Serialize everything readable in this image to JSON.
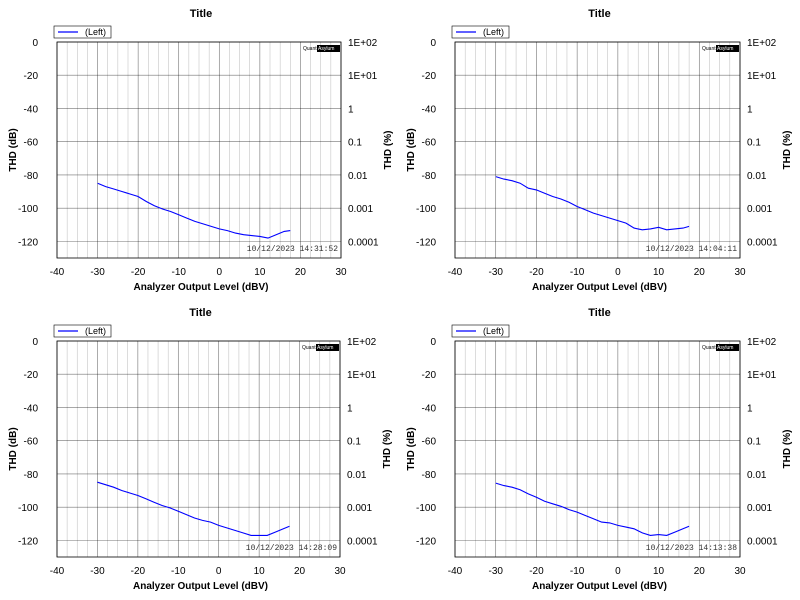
{
  "chart_data": [
    {
      "type": "line",
      "title": "Title",
      "xlabel": "Analyzer Output Level (dBV)",
      "ylabel": "THD (dB)",
      "y2label": "THD (%)",
      "xlim": [
        -40,
        30
      ],
      "ylim": [
        -130,
        0
      ],
      "x_ticks": [
        "-40",
        "-30",
        "-20",
        "-10",
        "0",
        "10",
        "20",
        "30"
      ],
      "y_ticks": [
        "0",
        "-20",
        "-40",
        "-60",
        "-80",
        "-100",
        "-120"
      ],
      "y2_ticks": [
        "1E+02",
        "1E+01",
        "1",
        "0.1",
        "0.01",
        "0.001",
        "0.0001"
      ],
      "legend": "(Left)",
      "timestamp": "10/12/2023 14:31:52",
      "logo": "QuantAsylum",
      "grid": true,
      "series": [
        {
          "name": "(Left)",
          "color": "#0000ff",
          "x": [
            -30,
            -28,
            -26,
            -24,
            -22,
            -20,
            -18,
            -16,
            -14,
            -12,
            -10,
            -8,
            -6,
            -4,
            -2,
            0,
            2,
            4,
            6,
            8,
            10,
            12,
            14,
            16,
            17.5
          ],
          "y": [
            -85,
            -87,
            -88.5,
            -90,
            -91.5,
            -93,
            -96,
            -98.5,
            -100.5,
            -102,
            -104,
            -106,
            -108,
            -109.5,
            -111,
            -112.5,
            -113.5,
            -115,
            -116,
            -116.5,
            -117,
            -118,
            -116,
            -114,
            -113.5
          ]
        }
      ]
    },
    {
      "type": "line",
      "title": "Title",
      "xlabel": "Analyzer Output Level (dBV)",
      "ylabel": "THD (dB)",
      "y2label": "THD (%)",
      "xlim": [
        -40,
        30
      ],
      "ylim": [
        -130,
        0
      ],
      "x_ticks": [
        "-40",
        "-30",
        "-20",
        "-10",
        "0",
        "10",
        "20",
        "30"
      ],
      "y_ticks": [
        "0",
        "-20",
        "-40",
        "-60",
        "-80",
        "-100",
        "-120"
      ],
      "y2_ticks": [
        "1E+02",
        "1E+01",
        "1",
        "0.1",
        "0.01",
        "0.001",
        "0.0001"
      ],
      "legend": "(Left)",
      "timestamp": "10/12/2023 14:04:11",
      "logo": "QuantAsylum",
      "grid": true,
      "series": [
        {
          "name": "(Left)",
          "color": "#0000ff",
          "x": [
            -30,
            -28,
            -26,
            -24,
            -22,
            -20,
            -18,
            -16,
            -14,
            -12,
            -10,
            -8,
            -6,
            -4,
            -2,
            0,
            2,
            4,
            6,
            8,
            10,
            12,
            14,
            16,
            17.5
          ],
          "y": [
            -81,
            -82.5,
            -83.5,
            -85,
            -88,
            -89,
            -91,
            -93,
            -94.5,
            -96.5,
            -99,
            -101,
            -103,
            -104.5,
            -106,
            -107.5,
            -109,
            -112,
            -113,
            -112.5,
            -111.5,
            -113,
            -112.5,
            -112,
            -111
          ]
        }
      ]
    },
    {
      "type": "line",
      "title": "Title",
      "xlabel": "Analyzer Output Level (dBV)",
      "ylabel": "THD (dB)",
      "y2label": "THD (%)",
      "xlim": [
        -40,
        30
      ],
      "ylim": [
        -130,
        0
      ],
      "x_ticks": [
        "-40",
        "-30",
        "-20",
        "-10",
        "0",
        "10",
        "20",
        "30"
      ],
      "y_ticks": [
        "0",
        "-20",
        "-40",
        "-60",
        "-80",
        "-100",
        "-120"
      ],
      "y2_ticks": [
        "1E+02",
        "1E+01",
        "1",
        "0.1",
        "0.01",
        "0.001",
        "0.0001"
      ],
      "legend": "(Left)",
      "timestamp": "10/12/2023 14:28:09",
      "logo": "QuantAsylum",
      "grid": true,
      "series": [
        {
          "name": "(Left)",
          "color": "#0000ff",
          "x": [
            -30,
            -28,
            -26,
            -24,
            -22,
            -20,
            -18,
            -16,
            -14,
            -12,
            -10,
            -8,
            -6,
            -4,
            -2,
            0,
            2,
            4,
            6,
            8,
            10,
            12,
            14,
            16,
            17.5
          ],
          "y": [
            -85,
            -86.5,
            -88,
            -90,
            -91.5,
            -93,
            -95,
            -97,
            -99,
            -100.5,
            -102.5,
            -104.5,
            -106.5,
            -108,
            -109,
            -111,
            -112.5,
            -114,
            -115.5,
            -117,
            -117,
            -117,
            -115,
            -113,
            -111.5
          ]
        }
      ]
    },
    {
      "type": "line",
      "title": "Title",
      "xlabel": "Analyzer Output Level (dBV)",
      "ylabel": "THD (dB)",
      "y2label": "THD (%)",
      "xlim": [
        -40,
        30
      ],
      "ylim": [
        -130,
        0
      ],
      "x_ticks": [
        "-40",
        "-30",
        "-20",
        "-10",
        "0",
        "10",
        "20",
        "30"
      ],
      "y_ticks": [
        "0",
        "-20",
        "-40",
        "-60",
        "-80",
        "-100",
        "-120"
      ],
      "y2_ticks": [
        "1E+02",
        "1E+01",
        "1",
        "0.1",
        "0.01",
        "0.001",
        "0.0001"
      ],
      "legend": "(Left)",
      "timestamp": "10/12/2023 14:13:38",
      "logo": "QuantAsylum",
      "grid": true,
      "series": [
        {
          "name": "(Left)",
          "color": "#0000ff",
          "x": [
            -30,
            -28,
            -26,
            -24,
            -22,
            -20,
            -18,
            -16,
            -14,
            -12,
            -10,
            -8,
            -6,
            -4,
            -2,
            0,
            2,
            4,
            6,
            8,
            10,
            12,
            14,
            16,
            17.5
          ],
          "y": [
            -85.5,
            -87,
            -88,
            -89.5,
            -92,
            -94,
            -96.5,
            -98,
            -99.5,
            -101.5,
            -103,
            -105,
            -107,
            -109,
            -109.5,
            -111,
            -112,
            -113,
            -115.5,
            -117,
            -116.5,
            -117,
            -115,
            -113,
            -111.5
          ]
        }
      ]
    }
  ]
}
